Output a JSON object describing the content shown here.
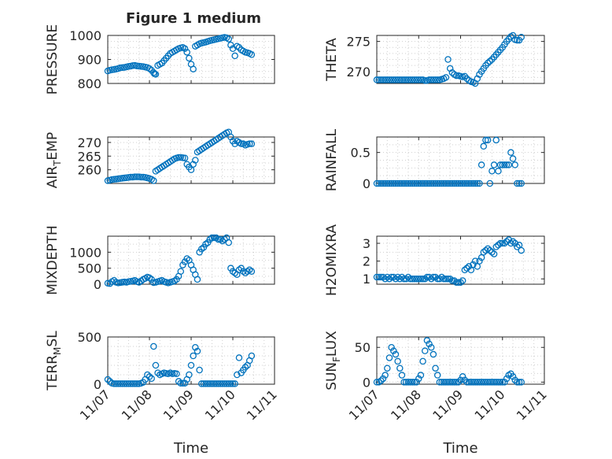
{
  "figure_title": "Figure 1 medium",
  "colors": {
    "marker": "#0072bd",
    "axis": "#262626",
    "grid": "#cfcfcf"
  },
  "chart_data": [
    {
      "id": "pressure",
      "type": "scatter",
      "title": "Figure 1 medium",
      "ylabel": "PRESSURE",
      "xlabel": "",
      "xlim": [
        0,
        4
      ],
      "ylim": [
        800,
        1000
      ],
      "yticks": [
        800,
        900,
        1000
      ],
      "ytick_labels": [
        "800",
        "900",
        "1000"
      ],
      "xticks": [
        0,
        1,
        2,
        3,
        4
      ],
      "xtick_labels": [],
      "grid_step": 25,
      "x": [
        0.0,
        0.05,
        0.1,
        0.15,
        0.2,
        0.25,
        0.3,
        0.35,
        0.4,
        0.45,
        0.5,
        0.55,
        0.6,
        0.65,
        0.7,
        0.75,
        0.8,
        0.85,
        0.9,
        0.95,
        1.0,
        1.05,
        1.1,
        1.12,
        1.15,
        1.2,
        1.25,
        1.3,
        1.35,
        1.4,
        1.45,
        1.5,
        1.55,
        1.6,
        1.65,
        1.7,
        1.75,
        1.8,
        1.85,
        1.9,
        1.95,
        2.0,
        2.05,
        2.1,
        2.15,
        2.2,
        2.25,
        2.3,
        2.35,
        2.4,
        2.45,
        2.5,
        2.55,
        2.6,
        2.65,
        2.7,
        2.75,
        2.8,
        2.85,
        2.9,
        2.95,
        3.0,
        3.05,
        3.1,
        3.15,
        3.2,
        3.25,
        3.3,
        3.35,
        3.4,
        3.45
      ],
      "y": [
        852,
        855,
        857,
        858,
        860,
        862,
        865,
        866,
        867,
        869,
        871,
        872,
        874,
        875,
        873,
        872,
        871,
        870,
        868,
        866,
        862,
        855,
        845,
        840,
        838,
        875,
        880,
        885,
        895,
        905,
        915,
        925,
        930,
        935,
        940,
        945,
        948,
        950,
        945,
        930,
        905,
        880,
        860,
        955,
        960,
        965,
        968,
        970,
        972,
        975,
        978,
        980,
        982,
        984,
        986,
        988,
        990,
        992,
        990,
        985,
        960,
        945,
        915,
        955,
        950,
        940,
        935,
        930,
        928,
        925,
        920
      ]
    },
    {
      "id": "theta",
      "type": "scatter",
      "title": "",
      "ylabel": "THETA",
      "xlabel": "",
      "xlim": [
        0,
        4
      ],
      "ylim": [
        268,
        276
      ],
      "yticks": [
        270,
        275
      ],
      "ytick_labels": [
        "270",
        "275"
      ],
      "xticks": [
        0,
        1,
        2,
        3,
        4
      ],
      "xtick_labels": [],
      "grid_step": 1,
      "x": [
        0.0,
        0.05,
        0.1,
        0.15,
        0.2,
        0.25,
        0.3,
        0.35,
        0.4,
        0.45,
        0.5,
        0.55,
        0.6,
        0.65,
        0.7,
        0.75,
        0.8,
        0.85,
        0.9,
        0.95,
        1.0,
        1.05,
        1.1,
        1.15,
        1.2,
        1.25,
        1.3,
        1.35,
        1.4,
        1.45,
        1.5,
        1.55,
        1.6,
        1.65,
        1.7,
        1.75,
        1.8,
        1.85,
        1.9,
        1.95,
        2.0,
        2.05,
        2.1,
        2.15,
        2.2,
        2.25,
        2.3,
        2.35,
        2.4,
        2.45,
        2.5,
        2.55,
        2.6,
        2.65,
        2.7,
        2.75,
        2.8,
        2.85,
        2.9,
        2.95,
        3.0,
        3.05,
        3.1,
        3.15,
        3.2,
        3.25,
        3.3,
        3.35,
        3.4,
        3.45
      ],
      "y": [
        268.6,
        268.6,
        268.6,
        268.6,
        268.6,
        268.6,
        268.6,
        268.6,
        268.6,
        268.6,
        268.6,
        268.6,
        268.6,
        268.6,
        268.6,
        268.6,
        268.6,
        268.6,
        268.6,
        268.6,
        268.6,
        268.6,
        268.6,
        268.5,
        268.5,
        268.6,
        268.6,
        268.6,
        268.6,
        268.6,
        268.6,
        268.7,
        268.8,
        269.0,
        272.0,
        270.5,
        269.8,
        269.5,
        269.3,
        269.3,
        269.2,
        269.1,
        269.2,
        268.8,
        268.5,
        268.3,
        268.2,
        268.0,
        268.8,
        269.5,
        270.0,
        270.5,
        271.0,
        271.4,
        271.7,
        272.0,
        272.4,
        272.8,
        273.2,
        273.6,
        274.0,
        274.5,
        275.0,
        275.4,
        275.8,
        276.0,
        275.3,
        275.2,
        275.2,
        275.7
      ]
    },
    {
      "id": "air_temp",
      "type": "scatter",
      "title": "",
      "ylabel": "AIR",
      "ylabel_sub": "T",
      "ylabel_rest": "EMP",
      "xlabel": "",
      "xlim": [
        0,
        4
      ],
      "ylim": [
        255,
        272
      ],
      "yticks": [
        260,
        265,
        270
      ],
      "ytick_labels": [
        "260",
        "265",
        "270"
      ],
      "xticks": [
        0,
        1,
        2,
        3,
        4
      ],
      "xtick_labels": [],
      "grid_step": 2.5,
      "x": [
        0.0,
        0.05,
        0.1,
        0.15,
        0.2,
        0.25,
        0.3,
        0.35,
        0.4,
        0.45,
        0.5,
        0.55,
        0.6,
        0.65,
        0.7,
        0.75,
        0.8,
        0.85,
        0.9,
        0.95,
        1.0,
        1.05,
        1.1,
        1.15,
        1.2,
        1.25,
        1.3,
        1.35,
        1.4,
        1.45,
        1.5,
        1.55,
        1.6,
        1.65,
        1.7,
        1.75,
        1.8,
        1.85,
        1.9,
        1.95,
        2.0,
        2.05,
        2.1,
        2.15,
        2.2,
        2.25,
        2.3,
        2.35,
        2.4,
        2.45,
        2.5,
        2.55,
        2.6,
        2.65,
        2.7,
        2.75,
        2.8,
        2.85,
        2.9,
        2.95,
        3.0,
        3.05,
        3.1,
        3.15,
        3.2,
        3.25,
        3.3,
        3.35,
        3.4,
        3.45
      ],
      "y": [
        256.0,
        256.2,
        256.4,
        256.5,
        256.6,
        256.7,
        256.8,
        256.9,
        257.0,
        257.1,
        257.2,
        257.3,
        257.3,
        257.4,
        257.4,
        257.4,
        257.3,
        257.3,
        257.2,
        257.0,
        256.8,
        256.5,
        256.0,
        259.5,
        260.0,
        260.5,
        261.0,
        261.5,
        262.0,
        262.5,
        263.0,
        263.5,
        264.0,
        264.3,
        264.5,
        264.5,
        264.4,
        264.3,
        262.0,
        261.0,
        260.0,
        262.0,
        263.5,
        266.5,
        267.0,
        267.5,
        268.0,
        268.5,
        269.0,
        269.5,
        270.0,
        270.5,
        271.0,
        271.5,
        272.0,
        272.5,
        273.0,
        273.5,
        273.8,
        272.0,
        270.5,
        269.5,
        270.5,
        270.0,
        269.5,
        269.5,
        269.0,
        269.3,
        269.5,
        269.5
      ]
    },
    {
      "id": "rainfall",
      "type": "scatter",
      "title": "",
      "ylabel": "RAINFALL",
      "xlabel": "",
      "xlim": [
        0,
        4
      ],
      "ylim": [
        0,
        0.75
      ],
      "yticks": [
        0,
        0.5
      ],
      "ytick_labels": [
        "0",
        "0.5"
      ],
      "xticks": [
        0,
        1,
        2,
        3,
        4
      ],
      "xtick_labels": [],
      "grid_step": 0.125,
      "x": [
        0.0,
        0.05,
        0.1,
        0.15,
        0.2,
        0.25,
        0.3,
        0.35,
        0.4,
        0.45,
        0.5,
        0.55,
        0.6,
        0.65,
        0.7,
        0.75,
        0.8,
        0.85,
        0.9,
        0.95,
        1.0,
        1.05,
        1.1,
        1.15,
        1.2,
        1.25,
        1.3,
        1.35,
        1.4,
        1.45,
        1.5,
        1.55,
        1.6,
        1.65,
        1.7,
        1.75,
        1.8,
        1.85,
        1.9,
        1.95,
        2.0,
        2.05,
        2.1,
        2.15,
        2.2,
        2.25,
        2.3,
        2.35,
        2.4,
        2.45,
        2.5,
        2.55,
        2.6,
        2.65,
        2.7,
        2.75,
        2.8,
        2.85,
        2.9,
        2.95,
        3.0,
        3.05,
        3.1,
        3.15,
        3.2,
        3.25,
        3.3,
        3.35,
        3.4,
        3.45
      ],
      "y": [
        0,
        0,
        0,
        0,
        0,
        0,
        0,
        0,
        0,
        0,
        0,
        0,
        0,
        0,
        0,
        0,
        0,
        0,
        0,
        0,
        0,
        0,
        0,
        0,
        0,
        0,
        0,
        0,
        0,
        0,
        0,
        0,
        0,
        0,
        0,
        0,
        0,
        0,
        0,
        0,
        0,
        0,
        0,
        0,
        0,
        0,
        0,
        0,
        0,
        0,
        0.3,
        0.6,
        0.7,
        0.7,
        0.0,
        0.2,
        0.3,
        0.7,
        0.2,
        0.3,
        0.3,
        0.3,
        0.3,
        0.3,
        0.5,
        0.4,
        0.3,
        0,
        0,
        0
      ]
    },
    {
      "id": "mixdepth",
      "type": "scatter",
      "title": "",
      "ylabel": "MIXDEPTH",
      "xlabel": "",
      "xlim": [
        0,
        4
      ],
      "ylim": [
        0,
        1500
      ],
      "yticks": [
        0,
        500,
        1000
      ],
      "ytick_labels": [
        "0",
        "500",
        "1000"
      ],
      "xticks": [
        0,
        1,
        2,
        3,
        4
      ],
      "xtick_labels": [],
      "grid_step": 250,
      "x": [
        0.0,
        0.05,
        0.1,
        0.15,
        0.2,
        0.25,
        0.3,
        0.35,
        0.4,
        0.45,
        0.5,
        0.55,
        0.6,
        0.65,
        0.7,
        0.75,
        0.8,
        0.85,
        0.9,
        0.95,
        1.0,
        1.05,
        1.1,
        1.15,
        1.2,
        1.25,
        1.3,
        1.35,
        1.4,
        1.45,
        1.5,
        1.55,
        1.6,
        1.65,
        1.7,
        1.75,
        1.8,
        1.85,
        1.9,
        1.95,
        2.0,
        2.05,
        2.1,
        2.15,
        2.2,
        2.25,
        2.3,
        2.35,
        2.4,
        2.45,
        2.5,
        2.55,
        2.6,
        2.65,
        2.7,
        2.75,
        2.8,
        2.85,
        2.9,
        2.95,
        3.0,
        3.05,
        3.1,
        3.15,
        3.2,
        3.25,
        3.3,
        3.35,
        3.4,
        3.45
      ],
      "y": [
        30,
        20,
        80,
        120,
        60,
        40,
        50,
        60,
        70,
        60,
        80,
        90,
        100,
        120,
        80,
        60,
        100,
        150,
        180,
        220,
        200,
        150,
        50,
        60,
        80,
        100,
        120,
        80,
        60,
        40,
        60,
        80,
        100,
        150,
        250,
        400,
        600,
        700,
        800,
        750,
        600,
        450,
        300,
        150,
        1000,
        1100,
        1150,
        1250,
        1300,
        1400,
        1450,
        1450,
        1450,
        1400,
        1400,
        1350,
        1400,
        1450,
        1300,
        500,
        400,
        350,
        300,
        450,
        500,
        400,
        350,
        400,
        450,
        400
      ]
    },
    {
      "id": "h2omixra",
      "type": "scatter",
      "title": "",
      "ylabel": "H2OMIXRA",
      "xlabel": "",
      "xlim": [
        0,
        4
      ],
      "ylim": [
        0.7,
        3.4
      ],
      "yticks": [
        1,
        2,
        3
      ],
      "ytick_labels": [
        "1",
        "2",
        "3"
      ],
      "xticks": [
        0,
        1,
        2,
        3,
        4
      ],
      "xtick_labels": [],
      "grid_step": 0.5,
      "x": [
        0.0,
        0.05,
        0.1,
        0.15,
        0.2,
        0.25,
        0.3,
        0.35,
        0.4,
        0.45,
        0.5,
        0.55,
        0.6,
        0.65,
        0.7,
        0.75,
        0.8,
        0.85,
        0.9,
        0.95,
        1.0,
        1.05,
        1.1,
        1.15,
        1.2,
        1.25,
        1.3,
        1.35,
        1.4,
        1.45,
        1.5,
        1.55,
        1.6,
        1.65,
        1.7,
        1.75,
        1.8,
        1.85,
        1.9,
        1.95,
        2.0,
        2.05,
        2.1,
        2.15,
        2.2,
        2.25,
        2.3,
        2.35,
        2.4,
        2.45,
        2.5,
        2.55,
        2.6,
        2.65,
        2.7,
        2.75,
        2.8,
        2.85,
        2.9,
        2.95,
        3.0,
        3.05,
        3.1,
        3.15,
        3.2,
        3.25,
        3.3,
        3.35,
        3.4,
        3.45
      ],
      "y": [
        1.1,
        1.1,
        1.1,
        1.1,
        1.0,
        1.1,
        1.0,
        1.1,
        1.1,
        1.0,
        1.1,
        1.0,
        1.1,
        1.0,
        1.0,
        1.1,
        1.0,
        1.0,
        1.0,
        1.0,
        1.0,
        1.0,
        1.0,
        1.0,
        1.1,
        1.1,
        1.0,
        1.1,
        1.1,
        1.0,
        1.0,
        1.1,
        1.0,
        1.0,
        1.0,
        1.0,
        0.9,
        0.9,
        0.8,
        0.8,
        0.8,
        0.9,
        1.5,
        1.6,
        1.7,
        1.5,
        1.8,
        2.0,
        1.7,
        2.0,
        2.2,
        2.5,
        2.6,
        2.7,
        2.6,
        2.5,
        2.4,
        2.8,
        2.9,
        3.0,
        3.0,
        3.0,
        3.1,
        3.2,
        3.0,
        3.1,
        3.0,
        2.8,
        2.9,
        2.6
      ]
    },
    {
      "id": "terrmsl",
      "type": "scatter",
      "title": "",
      "ylabel": "TERR",
      "ylabel_sub": "M",
      "ylabel_rest": "SL",
      "xlabel": "Time",
      "xlim": [
        0,
        4
      ],
      "ylim": [
        0,
        500
      ],
      "yticks": [
        0,
        500
      ],
      "ytick_labels": [
        "0",
        "500"
      ],
      "xticks": [
        0,
        1,
        2,
        3,
        4
      ],
      "xtick_labels": [
        "11/07",
        "11/08",
        "11/09",
        "11/10",
        "11/11"
      ],
      "grid_step": 100,
      "x": [
        0.0,
        0.05,
        0.1,
        0.15,
        0.2,
        0.25,
        0.3,
        0.35,
        0.4,
        0.45,
        0.5,
        0.55,
        0.6,
        0.65,
        0.7,
        0.75,
        0.8,
        0.85,
        0.9,
        0.95,
        1.0,
        1.05,
        1.1,
        1.15,
        1.2,
        1.25,
        1.3,
        1.35,
        1.4,
        1.45,
        1.5,
        1.55,
        1.6,
        1.65,
        1.7,
        1.75,
        1.8,
        1.85,
        1.9,
        1.95,
        2.0,
        2.05,
        2.1,
        2.15,
        2.2,
        2.25,
        2.3,
        2.35,
        2.4,
        2.45,
        2.5,
        2.55,
        2.6,
        2.65,
        2.7,
        2.75,
        2.8,
        2.85,
        2.9,
        2.95,
        3.0,
        3.05,
        3.1,
        3.15,
        3.2,
        3.25,
        3.3,
        3.35,
        3.4,
        3.45
      ],
      "y": [
        50,
        30,
        10,
        5,
        5,
        5,
        5,
        5,
        5,
        5,
        5,
        5,
        5,
        5,
        5,
        5,
        10,
        20,
        50,
        100,
        80,
        60,
        400,
        200,
        120,
        100,
        110,
        120,
        115,
        110,
        120,
        110,
        115,
        110,
        30,
        10,
        10,
        10,
        50,
        100,
        200,
        300,
        390,
        350,
        150,
        5,
        5,
        5,
        5,
        5,
        5,
        5,
        5,
        5,
        5,
        5,
        5,
        5,
        5,
        5,
        5,
        5,
        100,
        280,
        120,
        150,
        180,
        200,
        250,
        300
      ]
    },
    {
      "id": "sun_flux",
      "type": "scatter",
      "title": "",
      "ylabel": "SUN",
      "ylabel_sub": "F",
      "ylabel_rest": "LUX",
      "xlabel": "Time",
      "xlim": [
        0,
        4
      ],
      "ylim": [
        -3,
        65
      ],
      "yticks": [
        0,
        50
      ],
      "ytick_labels": [
        "0",
        "50"
      ],
      "xticks": [
        0,
        1,
        2,
        3,
        4
      ],
      "xtick_labels": [
        "11/07",
        "11/08",
        "11/09",
        "11/10",
        "11/11"
      ],
      "grid_step": 12.5,
      "x": [
        0.0,
        0.05,
        0.1,
        0.15,
        0.2,
        0.25,
        0.3,
        0.35,
        0.4,
        0.45,
        0.5,
        0.55,
        0.6,
        0.65,
        0.7,
        0.75,
        0.8,
        0.85,
        0.9,
        0.95,
        1.0,
        1.05,
        1.1,
        1.15,
        1.2,
        1.25,
        1.3,
        1.35,
        1.4,
        1.45,
        1.5,
        1.55,
        1.6,
        1.65,
        1.7,
        1.75,
        1.8,
        1.85,
        1.9,
        1.95,
        2.0,
        2.05,
        2.1,
        2.15,
        2.2,
        2.25,
        2.3,
        2.35,
        2.4,
        2.45,
        2.5,
        2.55,
        2.6,
        2.65,
        2.7,
        2.75,
        2.8,
        2.85,
        2.9,
        2.95,
        3.0,
        3.05,
        3.1,
        3.15,
        3.2,
        3.25,
        3.3,
        3.35,
        3.4,
        3.45
      ],
      "y": [
        0,
        0,
        2,
        5,
        10,
        20,
        35,
        50,
        45,
        40,
        30,
        20,
        10,
        0,
        0,
        0,
        0,
        0,
        0,
        0,
        5,
        10,
        30,
        45,
        60,
        55,
        50,
        40,
        20,
        10,
        0,
        0,
        0,
        0,
        0,
        0,
        0,
        0,
        0,
        0,
        3,
        8,
        3,
        0,
        0,
        0,
        0,
        0,
        0,
        0,
        0,
        0,
        0,
        0,
        0,
        0,
        0,
        0,
        0,
        0,
        0,
        0,
        5,
        10,
        12,
        8,
        3,
        0,
        0,
        0
      ]
    }
  ]
}
